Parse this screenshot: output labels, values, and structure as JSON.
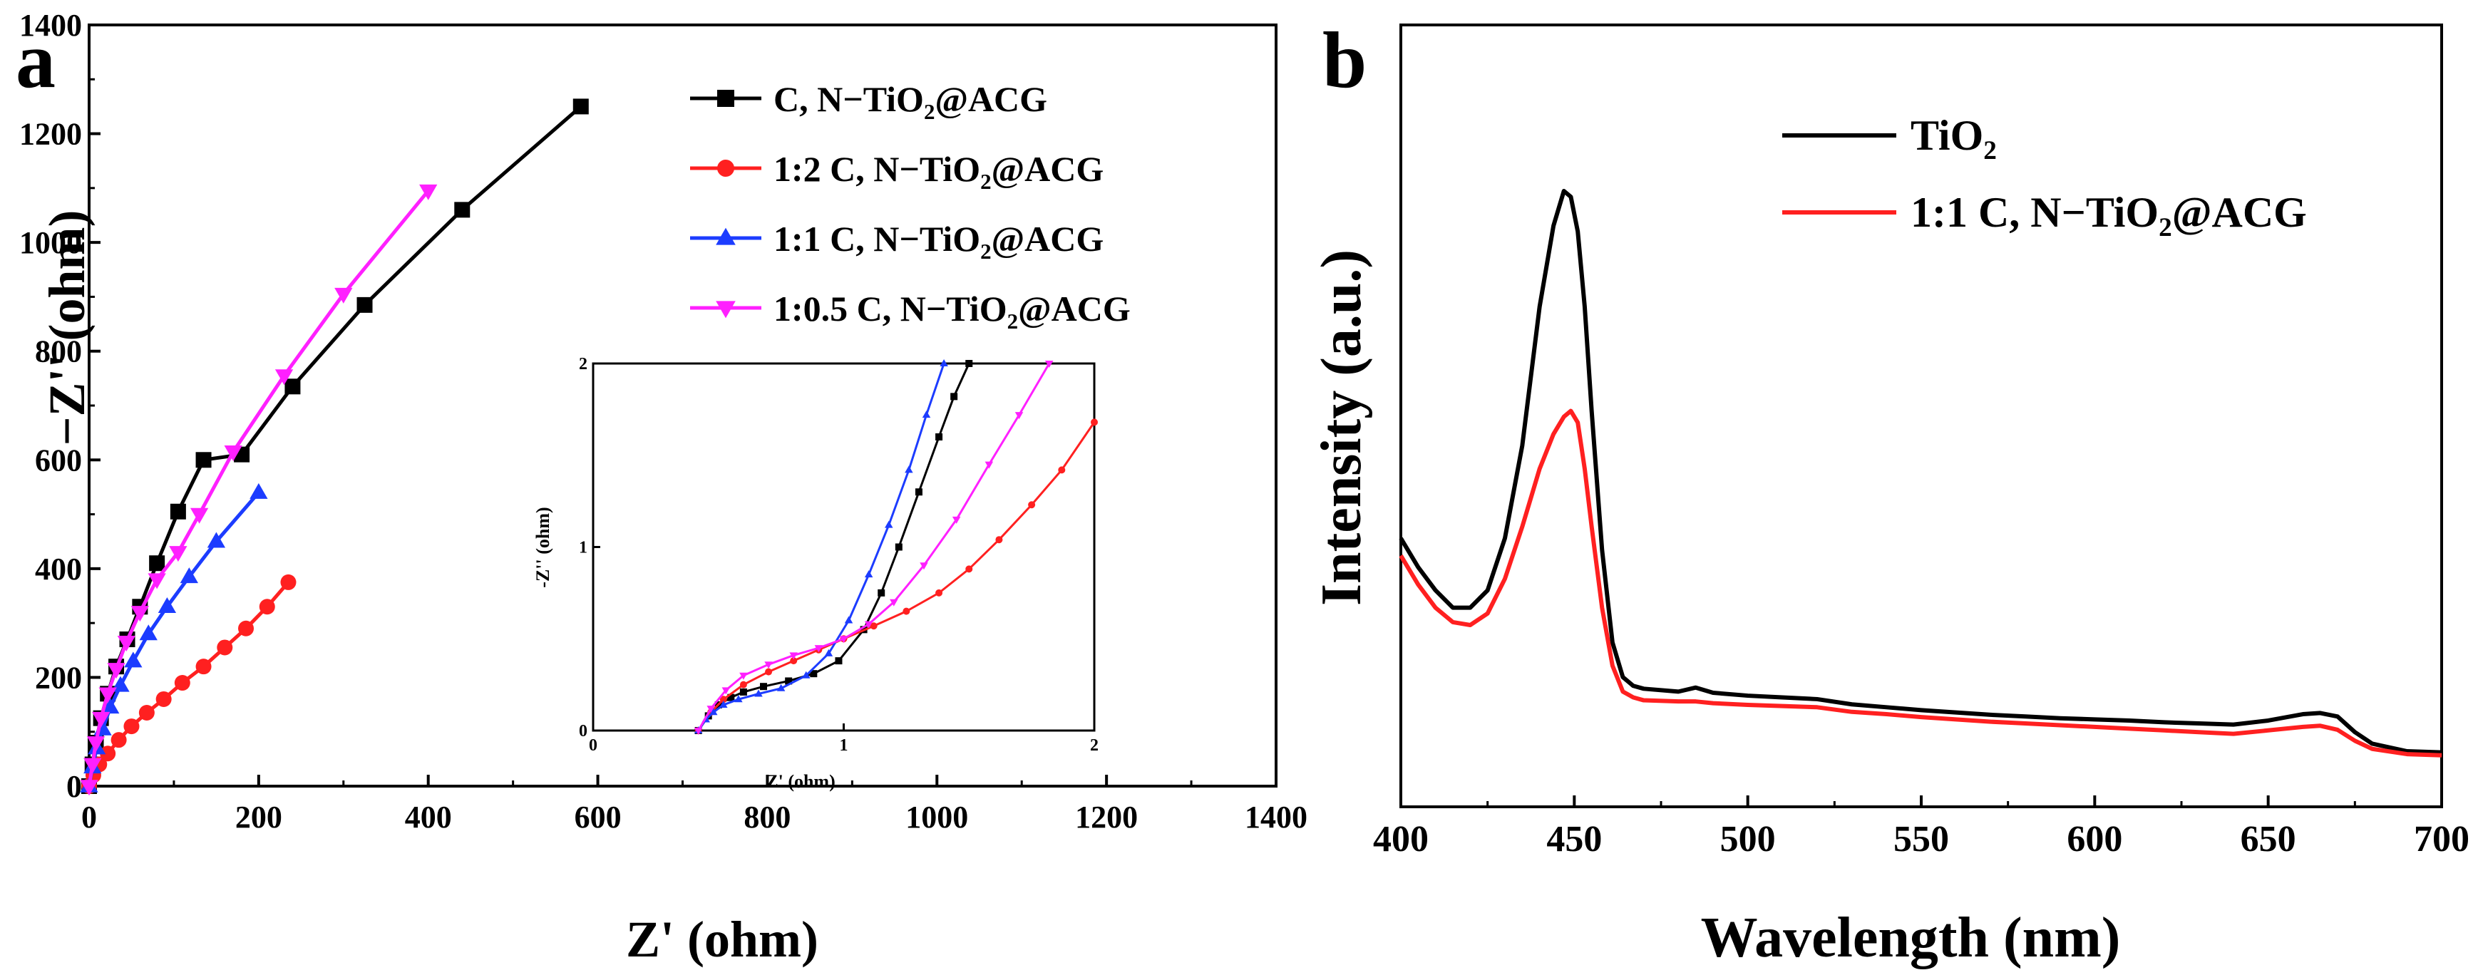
{
  "figure": {
    "panel_a_label": "a",
    "panel_b_label": "b"
  },
  "chart_data": [
    {
      "id": "a",
      "type": "scatter",
      "title": "",
      "xlabel": "Z' (ohm)",
      "ylabel": "−Z'' (ohm)",
      "xlim": [
        0,
        1400
      ],
      "ylim": [
        0,
        1400
      ],
      "xticks": [
        0,
        200,
        400,
        600,
        800,
        1000,
        1200,
        1400
      ],
      "yticks": [
        0,
        200,
        400,
        600,
        800,
        1000,
        1200,
        1400
      ],
      "legend_position": "top-right",
      "series": [
        {
          "name": "C, N−TiO2@ACG",
          "name_main": "C, N−TiO",
          "name_sub": "2",
          "name_tail": "@ACG",
          "color": "#000000",
          "marker": "square",
          "x": [
            0,
            4,
            8,
            14,
            22,
            32,
            45,
            60,
            80,
            105,
            135,
            180,
            240,
            325,
            440,
            580
          ],
          "y": [
            0,
            40,
            80,
            125,
            170,
            220,
            270,
            330,
            410,
            505,
            600,
            610,
            735,
            885,
            1060,
            1250
          ]
        },
        {
          "name": "1:2 C, N−TiO2@ACG",
          "name_main": "1:2 C, N−TiO",
          "name_sub": "2",
          "name_tail": "@ACG",
          "color": "#ff2020",
          "marker": "circle",
          "x": [
            0,
            5,
            12,
            22,
            35,
            50,
            68,
            88,
            110,
            135,
            160,
            185,
            210,
            235
          ],
          "y": [
            0,
            20,
            40,
            60,
            85,
            110,
            135,
            160,
            190,
            220,
            255,
            290,
            330,
            375
          ]
        },
        {
          "name": "1:1 C, N−TiO2@ACG",
          "name_main": "1:1 C, N−TiO",
          "name_sub": "2",
          "name_tail": "@ACG",
          "color": "#1c3cff",
          "marker": "triangle-up",
          "x": [
            0,
            4,
            9,
            16,
            25,
            37,
            52,
            70,
            92,
            118,
            150,
            200
          ],
          "y": [
            0,
            35,
            70,
            105,
            145,
            185,
            230,
            280,
            330,
            385,
            450,
            540
          ]
        },
        {
          "name": "1:0.5 C, N−TiO2@ACG",
          "name_main": "1:0.5 C, N−TiO",
          "name_sub": "2",
          "name_tail": "@ACG",
          "color": "#ff20ff",
          "marker": "triangle-down",
          "x": [
            0,
            4,
            8,
            14,
            22,
            32,
            44,
            60,
            80,
            105,
            130,
            170,
            230,
            300,
            400
          ],
          "y": [
            0,
            40,
            80,
            125,
            170,
            215,
            265,
            320,
            380,
            430,
            500,
            615,
            755,
            905,
            1095
          ]
        }
      ]
    },
    {
      "id": "a-inset",
      "type": "line",
      "title": "",
      "xlabel": "Z' (ohm)",
      "ylabel": "-Z'' (ohm)",
      "xlim": [
        0,
        2
      ],
      "ylim": [
        0,
        2
      ],
      "xticks": [
        0,
        1,
        2
      ],
      "yticks": [
        0,
        1,
        2
      ],
      "series": [
        {
          "name": "C, N−TiO2@ACG",
          "color": "#000000",
          "x": [
            0.42,
            0.46,
            0.5,
            0.55,
            0.6,
            0.68,
            0.78,
            0.88,
            0.98,
            1.08,
            1.15,
            1.22,
            1.3,
            1.38,
            1.44,
            1.5
          ],
          "y": [
            0.0,
            0.08,
            0.14,
            0.18,
            0.21,
            0.24,
            0.27,
            0.31,
            0.38,
            0.55,
            0.75,
            1.0,
            1.3,
            1.6,
            1.82,
            2.0
          ]
        },
        {
          "name": "1:2 C, N−TiO2@ACG",
          "color": "#ff2020",
          "x": [
            0.42,
            0.47,
            0.52,
            0.6,
            0.7,
            0.8,
            0.9,
            1.0,
            1.12,
            1.25,
            1.38,
            1.5,
            1.62,
            1.75,
            1.87,
            2.0
          ],
          "y": [
            0.0,
            0.1,
            0.17,
            0.25,
            0.32,
            0.38,
            0.44,
            0.5,
            0.57,
            0.65,
            0.75,
            0.88,
            1.04,
            1.23,
            1.42,
            1.68
          ]
        },
        {
          "name": "1:1 C, N−TiO2@ACG",
          "color": "#1c3cff",
          "x": [
            0.42,
            0.45,
            0.48,
            0.52,
            0.58,
            0.66,
            0.75,
            0.85,
            0.94,
            1.02,
            1.1,
            1.18,
            1.26,
            1.33,
            1.4
          ],
          "y": [
            0.0,
            0.06,
            0.1,
            0.14,
            0.17,
            0.2,
            0.23,
            0.3,
            0.42,
            0.6,
            0.85,
            1.12,
            1.42,
            1.72,
            2.0
          ]
        },
        {
          "name": "1:0.5 C, N−TiO2@ACG",
          "color": "#ff20ff",
          "x": [
            0.42,
            0.47,
            0.53,
            0.6,
            0.7,
            0.8,
            0.9,
            1.0,
            1.1,
            1.2,
            1.32,
            1.45,
            1.58,
            1.7,
            1.82
          ],
          "y": [
            0.0,
            0.12,
            0.22,
            0.3,
            0.36,
            0.41,
            0.45,
            0.5,
            0.58,
            0.7,
            0.9,
            1.15,
            1.45,
            1.72,
            2.0
          ]
        }
      ]
    },
    {
      "id": "b",
      "type": "line",
      "title": "",
      "xlabel": "Wavelength (nm)",
      "ylabel": "Intensity (a.u.)",
      "xlim": [
        400,
        700
      ],
      "ylim": [
        0,
        100
      ],
      "xticks": [
        400,
        450,
        500,
        550,
        600,
        650,
        700
      ],
      "yticks": [],
      "legend_position": "top-right",
      "series": [
        {
          "name": "TiO2",
          "name_main": "TiO",
          "name_sub": "2",
          "name_tail": "",
          "color": "#000000",
          "x": [
            400,
            405,
            410,
            415,
            420,
            425,
            430,
            435,
            440,
            444,
            447,
            449,
            451,
            453,
            455,
            458,
            461,
            464,
            467,
            470,
            480,
            485,
            490,
            500,
            510,
            520,
            530,
            540,
            550,
            560,
            570,
            580,
            590,
            600,
            610,
            620,
            630,
            640,
            650,
            660,
            665,
            670,
            675,
            680,
            690,
            700
          ],
          "y": [
            40,
            35,
            31,
            28,
            28,
            31,
            40,
            56,
            80,
            94,
            100,
            99,
            93,
            80,
            62,
            38,
            22,
            16,
            14.5,
            14,
            13.5,
            14.2,
            13.3,
            12.8,
            12.5,
            12.2,
            11.3,
            10.8,
            10.3,
            9.9,
            9.5,
            9.2,
            8.9,
            8.7,
            8.5,
            8.2,
            8.0,
            7.8,
            8.5,
            9.6,
            9.8,
            9.2,
            6.5,
            4.5,
            3.2,
            3.0
          ]
        },
        {
          "name": "1:1 C, N−TiO2@ACG",
          "name_main": "1:1 C, N−TiO",
          "name_sub": "2",
          "name_tail": "@ACG",
          "color": "#ff2020",
          "x": [
            400,
            405,
            410,
            415,
            420,
            425,
            430,
            435,
            440,
            444,
            447,
            449,
            451,
            453,
            455,
            458,
            461,
            464,
            467,
            470,
            480,
            485,
            490,
            500,
            510,
            520,
            530,
            540,
            550,
            560,
            570,
            580,
            590,
            600,
            610,
            620,
            630,
            640,
            650,
            660,
            665,
            670,
            675,
            680,
            690,
            700
          ],
          "y": [
            37,
            32,
            28,
            25.5,
            25,
            27,
            33,
            42,
            52,
            58,
            61,
            62,
            60,
            52,
            42,
            28,
            18,
            13.5,
            12.5,
            12,
            11.8,
            11.8,
            11.5,
            11.2,
            11.0,
            10.8,
            10.0,
            9.6,
            9.1,
            8.7,
            8.3,
            8.0,
            7.7,
            7.4,
            7.1,
            6.8,
            6.5,
            6.2,
            6.8,
            7.4,
            7.6,
            6.9,
            5.0,
            3.6,
            2.7,
            2.5
          ]
        }
      ]
    }
  ]
}
